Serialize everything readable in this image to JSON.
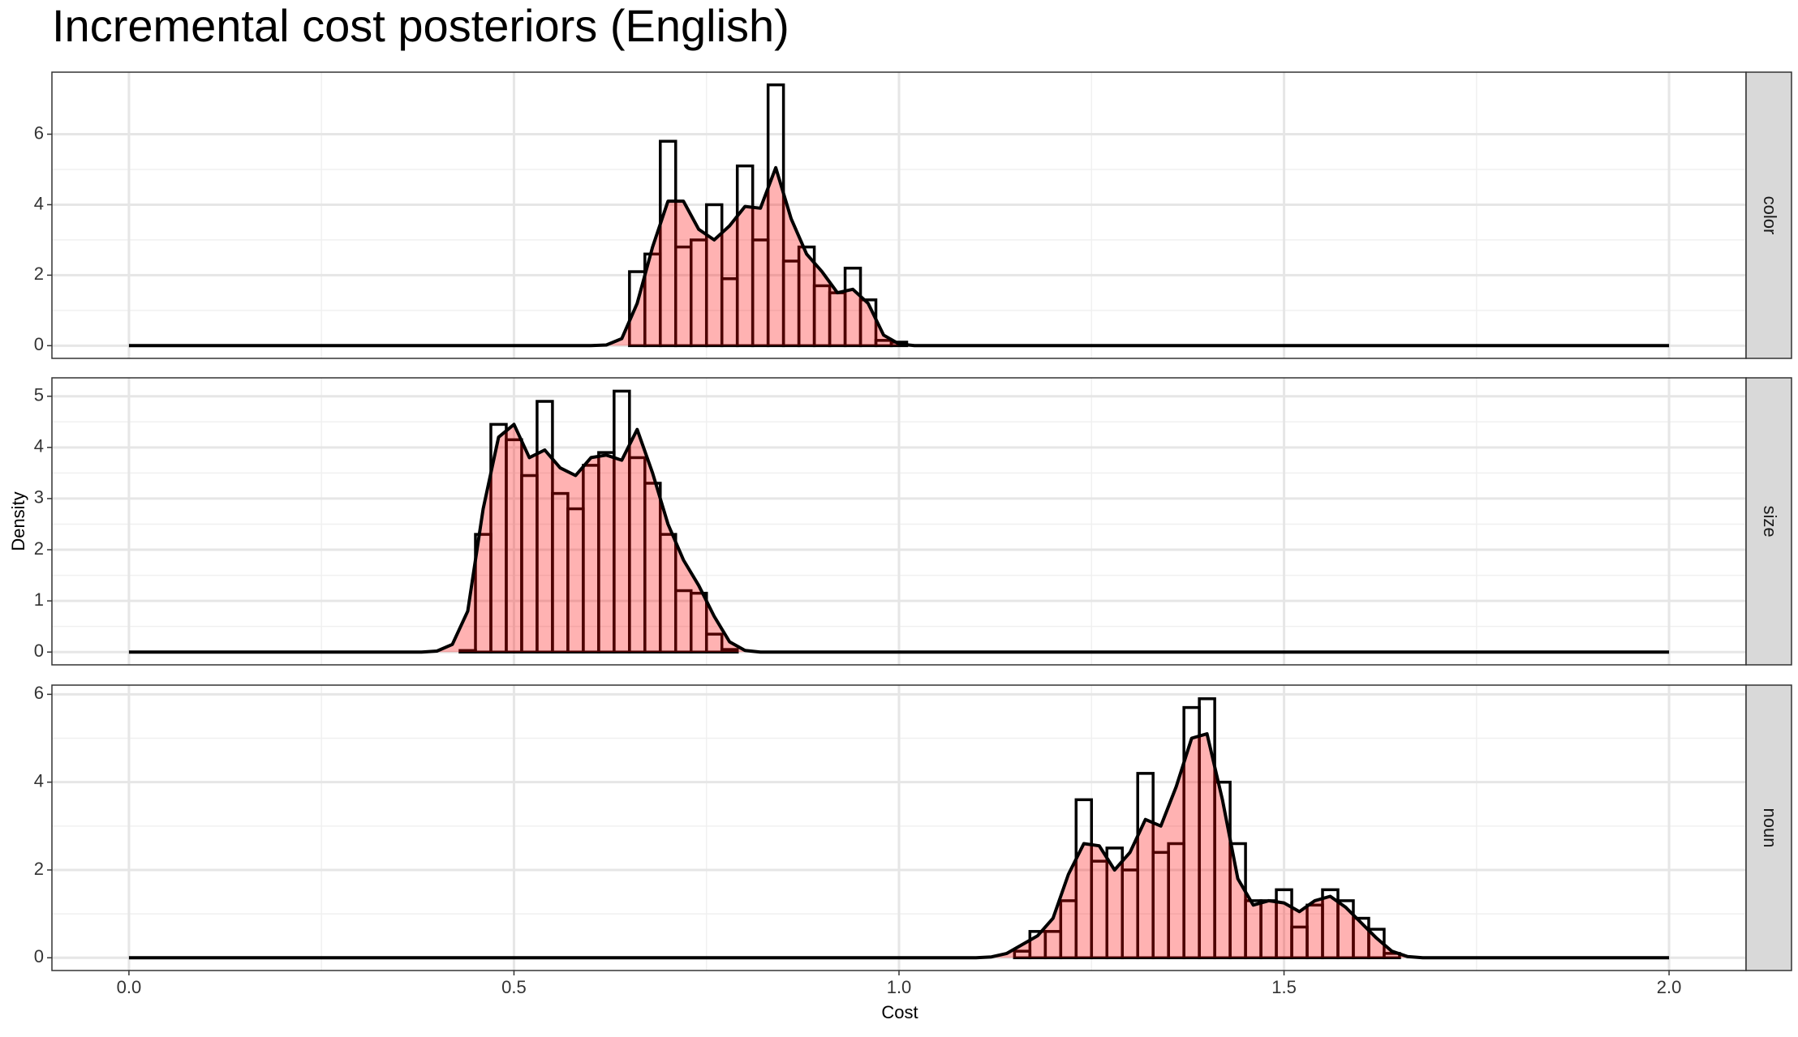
{
  "title": "Incremental cost posteriors (English)",
  "x_label": "Cost",
  "y_label": "Density",
  "chart_data": [
    {
      "type": "histogram",
      "panel": "color",
      "bins": [
        0.65,
        0.67,
        0.69,
        0.71,
        0.73,
        0.75,
        0.77,
        0.79,
        0.81,
        0.83,
        0.85,
        0.87,
        0.89,
        0.91,
        0.93,
        0.95,
        0.97,
        0.99,
        1.01
      ],
      "values": [
        2.1,
        2.6,
        5.8,
        2.8,
        3.0,
        4.0,
        1.9,
        5.1,
        3.0,
        7.4,
        2.4,
        2.8,
        1.7,
        1.5,
        2.2,
        1.3,
        0.15,
        0.1
      ],
      "density": {
        "x": [
          0,
          0.6,
          0.62,
          0.64,
          0.66,
          0.68,
          0.7,
          0.72,
          0.74,
          0.76,
          0.78,
          0.8,
          0.82,
          0.84,
          0.86,
          0.88,
          0.9,
          0.92,
          0.94,
          0.96,
          0.98,
          1.0,
          1.02,
          1.04,
          2.0
        ],
        "values": [
          0,
          0,
          0.02,
          0.2,
          1.2,
          2.8,
          4.1,
          4.1,
          3.3,
          3.0,
          3.4,
          3.95,
          3.9,
          5.05,
          3.6,
          2.6,
          2.1,
          1.5,
          1.6,
          1.2,
          0.3,
          0.05,
          0,
          0,
          0
        ]
      },
      "density_fill": "#ff00004d",
      "xlim": [
        -0.1,
        2.1
      ],
      "xticks": [
        {
          "value": 0,
          "label": "0.0"
        },
        0.5,
        {
          "value": 1,
          "label": "1.0"
        },
        1.5,
        {
          "value": 2,
          "label": "2.0"
        }
      ],
      "ylim": [
        -0.36,
        7.76
      ],
      "yticks": [
        0,
        2,
        4,
        6
      ],
      "grid": true
    },
    {
      "type": "histogram",
      "panel": "size",
      "bins": [
        0.43,
        0.45,
        0.47,
        0.49,
        0.51,
        0.53,
        0.55,
        0.57,
        0.59,
        0.61,
        0.63,
        0.65,
        0.67,
        0.69,
        0.71,
        0.73,
        0.75,
        0.77,
        0.79
      ],
      "values": [
        0.03,
        2.3,
        4.45,
        4.15,
        3.45,
        4.9,
        3.1,
        2.8,
        3.65,
        3.9,
        5.1,
        3.8,
        3.3,
        2.3,
        1.2,
        1.15,
        0.35,
        0.05
      ],
      "density": {
        "x": [
          0,
          0.38,
          0.4,
          0.42,
          0.44,
          0.46,
          0.48,
          0.5,
          0.52,
          0.54,
          0.56,
          0.58,
          0.6,
          0.62,
          0.64,
          0.66,
          0.68,
          0.7,
          0.72,
          0.74,
          0.76,
          0.78,
          0.8,
          0.82,
          2.0
        ],
        "values": [
          0,
          0,
          0.02,
          0.15,
          0.8,
          2.8,
          4.2,
          4.45,
          3.8,
          3.95,
          3.6,
          3.45,
          3.8,
          3.85,
          3.75,
          4.35,
          3.5,
          2.5,
          1.8,
          1.3,
          0.7,
          0.2,
          0.03,
          0,
          0
        ]
      },
      "density_fill": "#ff00004d",
      "xlim": [
        -0.1,
        2.1
      ],
      "xticks": [
        {
          "value": 0,
          "label": "0.0"
        },
        0.5,
        {
          "value": 1,
          "label": "1.0"
        },
        1.5,
        {
          "value": 2,
          "label": "2.0"
        }
      ],
      "ylim": [
        -0.25,
        5.36
      ],
      "yticks": [
        0,
        1,
        2,
        3,
        4,
        5
      ],
      "grid": true
    },
    {
      "type": "histogram",
      "panel": "noun",
      "bins": [
        1.15,
        1.17,
        1.19,
        1.21,
        1.23,
        1.25,
        1.27,
        1.29,
        1.31,
        1.33,
        1.35,
        1.37,
        1.39,
        1.41,
        1.43,
        1.45,
        1.47,
        1.49,
        1.51,
        1.53,
        1.55,
        1.57,
        1.59,
        1.61,
        1.63,
        1.65
      ],
      "values": [
        0.15,
        0.6,
        0.6,
        1.3,
        3.6,
        2.2,
        2.5,
        2.0,
        4.2,
        2.4,
        2.6,
        5.7,
        5.9,
        4.0,
        2.6,
        1.3,
        1.3,
        1.55,
        0.7,
        1.2,
        1.55,
        1.3,
        0.9,
        0.65,
        0.1
      ],
      "density": {
        "x": [
          0,
          1.1,
          1.12,
          1.14,
          1.16,
          1.18,
          1.2,
          1.22,
          1.24,
          1.26,
          1.28,
          1.3,
          1.32,
          1.34,
          1.36,
          1.38,
          1.4,
          1.42,
          1.44,
          1.46,
          1.48,
          1.5,
          1.52,
          1.54,
          1.56,
          1.58,
          1.6,
          1.62,
          1.64,
          1.66,
          1.68,
          1.7,
          2.0
        ],
        "values": [
          0,
          0,
          0.02,
          0.1,
          0.3,
          0.5,
          0.9,
          1.9,
          2.6,
          2.55,
          2.0,
          2.4,
          3.15,
          3.0,
          3.9,
          5.0,
          5.1,
          3.6,
          1.8,
          1.2,
          1.3,
          1.25,
          1.05,
          1.3,
          1.4,
          1.15,
          0.8,
          0.45,
          0.15,
          0.03,
          0,
          0,
          0
        ]
      },
      "density_fill": "#ff00004d",
      "xlim": [
        -0.1,
        2.1
      ],
      "xticks": [
        {
          "value": 0,
          "label": "0.0"
        },
        0.5,
        {
          "value": 1,
          "label": "1.0"
        },
        1.5,
        {
          "value": 2,
          "label": "2.0"
        }
      ],
      "ylim": [
        -0.29,
        6.21
      ],
      "yticks": [
        0,
        2,
        4,
        6
      ],
      "grid": true
    }
  ]
}
